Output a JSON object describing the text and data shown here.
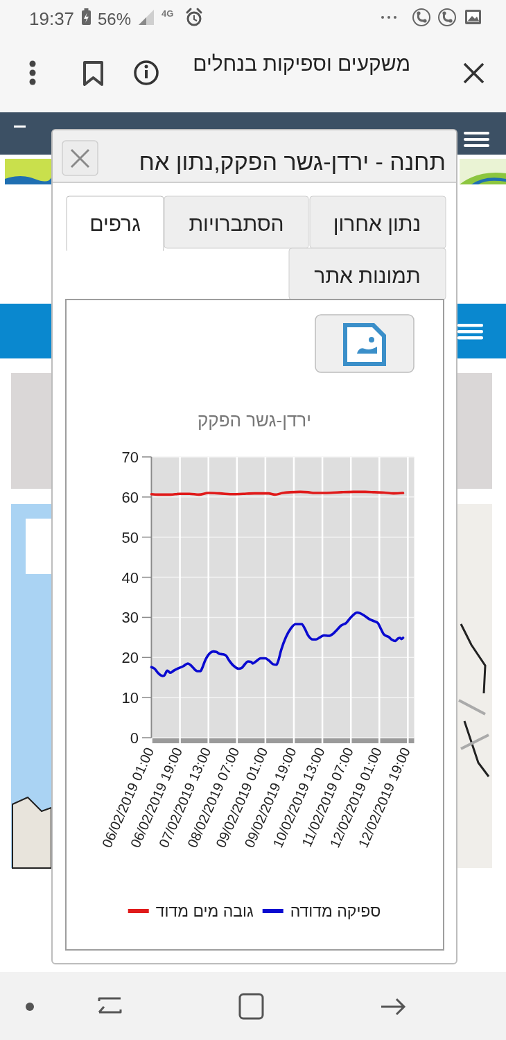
{
  "chart_data": {
    "type": "line",
    "title": "ירדן-גשר הפקק",
    "annotations": [
      "משקעים וספיקות בנחלים",
      "תחנה - ירדן-גשר הפקק,נתון אח",
      "נתון אחרון",
      "הסתברויות",
      "גרפים",
      "תמונות אתר",
      "19:37",
      "56%",
      "4G"
    ],
    "series": [
      {
        "name": "ספיקה מדודה",
        "color": "#0a0ad0",
        "x": [
          "2019-02-06T01:00",
          "2019-02-06T03:00",
          "2019-02-06T05:00",
          "2019-02-06T08:00",
          "2019-02-06T09:00",
          "2019-02-06T11:00",
          "2019-02-06T13:00",
          "2019-02-06T15:00",
          "2019-02-06T18:00",
          "2019-02-06T21:00",
          "2019-02-07T00:00",
          "2019-02-07T02:00",
          "2019-02-07T03:00",
          "2019-02-07T06:00",
          "2019-02-07T08:00",
          "2019-02-07T09:00",
          "2019-02-07T11:00",
          "2019-02-07T14:00",
          "2019-02-07T16:00",
          "2019-02-07T18:00",
          "2019-02-07T20:00",
          "2019-02-07T22:00",
          "2019-02-08T00:00",
          "2019-02-08T02:00",
          "2019-02-08T05:00",
          "2019-02-08T08:00",
          "2019-02-08T10:00",
          "2019-02-08T12:00",
          "2019-02-08T14:00",
          "2019-02-08T16:00",
          "2019-02-08T17:00",
          "2019-02-08T19:00",
          "2019-02-08T22:00",
          "2019-02-09T01:00",
          "2019-02-09T03:00",
          "2019-02-09T06:00",
          "2019-02-09T08:00",
          "2019-02-09T09:00",
          "2019-02-09T11:00",
          "2019-02-09T14:00",
          "2019-02-09T17:00",
          "2019-02-09T20:00",
          "2019-02-10T00:00",
          "2019-02-10T02:00",
          "2019-02-10T04:00",
          "2019-02-10T07:00",
          "2019-02-10T09:00",
          "2019-02-10T11:00",
          "2019-02-10T14:00",
          "2019-02-10T17:00",
          "2019-02-10T20:00",
          "2019-02-10T22:00",
          "2019-02-11T01:00",
          "2019-02-11T04:00",
          "2019-02-11T07:00",
          "2019-02-11T11:00",
          "2019-02-11T13:00",
          "2019-02-11T16:00",
          "2019-02-11T19:00",
          "2019-02-11T22:00",
          "2019-02-12T00:00",
          "2019-02-12T02:00",
          "2019-02-12T04:00",
          "2019-02-12T07:00",
          "2019-02-12T09:00",
          "2019-02-12T11:00",
          "2019-02-12T13:00",
          "2019-02-12T14:00",
          "2019-02-12T15:00",
          "2019-02-12T16:00"
        ],
        "values": [
          17.6,
          17.2,
          16.2,
          15.4,
          15.5,
          16.7,
          16.2,
          16.7,
          17.3,
          17.8,
          18.5,
          18.0,
          17.6,
          16.6,
          16.6,
          17.3,
          19.3,
          21.1,
          21.5,
          21.4,
          20.9,
          20.8,
          20.5,
          19.3,
          17.9,
          17.2,
          17.4,
          18.3,
          19.0,
          18.9,
          18.5,
          19.0,
          19.8,
          19.8,
          19.3,
          18.3,
          18.2,
          19.0,
          21.9,
          25.1,
          27.2,
          28.3,
          28.3,
          27.1,
          25.5,
          24.5,
          24.5,
          24.9,
          25.5,
          25.4,
          26.0,
          26.8,
          28.0,
          28.6,
          30.0,
          31.2,
          31.0,
          30.3,
          29.5,
          29.0,
          28.6,
          27.1,
          25.7,
          25.1,
          24.4,
          24.1,
          24.8,
          24.9,
          24.6,
          24.9
        ]
      },
      {
        "name": "גובה מים מדוד",
        "color": "#e01b1b",
        "x": [
          "2019-02-06T01:00",
          "2019-02-06T05:00",
          "2019-02-06T13:00",
          "2019-02-06T19:00",
          "2019-02-07T01:00",
          "2019-02-07T07:00",
          "2019-02-07T13:00",
          "2019-02-07T20:00",
          "2019-02-08T05:00",
          "2019-02-08T11:00",
          "2019-02-08T18:00",
          "2019-02-09T03:00",
          "2019-02-09T07:00",
          "2019-02-09T12:00",
          "2019-02-09T17:00",
          "2019-02-09T23:00",
          "2019-02-10T04:00",
          "2019-02-10T08:00",
          "2019-02-10T14:00",
          "2019-02-10T20:00",
          "2019-02-11T01:00",
          "2019-02-11T09:00",
          "2019-02-11T16:00",
          "2019-02-11T22:00",
          "2019-02-12T04:00",
          "2019-02-12T10:00",
          "2019-02-12T16:00"
        ],
        "values": [
          60.7,
          60.6,
          60.6,
          60.8,
          60.8,
          60.6,
          61.0,
          60.9,
          60.7,
          60.8,
          60.9,
          60.9,
          60.6,
          61.0,
          61.2,
          61.3,
          61.2,
          61.0,
          61.0,
          61.1,
          61.2,
          61.3,
          61.3,
          61.2,
          61.1,
          60.9,
          61.0
        ]
      }
    ],
    "xlim": [
      "2019-02-06T01:00",
      "2019-02-12T23:00"
    ],
    "xticks": [
      {
        "value": "2019-02-06T01:00",
        "label": "06/02/2019 01:00"
      },
      {
        "value": "2019-02-06T19:00",
        "label": "06/02/2019 19:00"
      },
      {
        "value": "2019-02-07T13:00",
        "label": "07/02/2019 13:00"
      },
      {
        "value": "2019-02-08T07:00",
        "label": "08/02/2019 07:00"
      },
      {
        "value": "2019-02-09T01:00",
        "label": "09/02/2019 01:00"
      },
      {
        "value": "2019-02-09T19:00",
        "label": "09/02/2019 19:00"
      },
      {
        "value": "2019-02-10T13:00",
        "label": "10/02/2019 13:00"
      },
      {
        "value": "2019-02-11T07:00",
        "label": "11/02/2019 07:00"
      },
      {
        "value": "2019-02-12T01:00",
        "label": "12/02/2019 01:00"
      },
      {
        "value": "2019-02-12T19:00",
        "label": "12/02/2019 19:00"
      }
    ],
    "ylim": [
      0,
      70
    ],
    "yticks": [
      0,
      10,
      20,
      30,
      40,
      50,
      60,
      70
    ],
    "grid": true,
    "legend": "bottom",
    "line_style": "solid"
  }
}
